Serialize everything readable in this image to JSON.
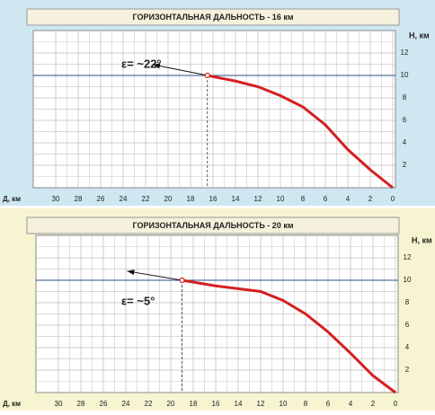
{
  "chart_data": [
    {
      "type": "line",
      "title": "ГОРИЗОНТАЛЬНАЯ ДАЛЬНОСТЬ - 16 км",
      "annotation": "ε= ~22°",
      "xlabel": "Д, км",
      "ylabel": "Н, км",
      "x": [
        16.5,
        14,
        12,
        10,
        8,
        6,
        4,
        2,
        0
      ],
      "series": [
        {
          "color": "#d42020",
          "values": [
            10,
            9.5,
            9,
            8.2,
            7.2,
            5.6,
            3.4,
            1.6,
            0
          ]
        }
      ],
      "xlim": [
        32,
        0
      ],
      "ylim": [
        0,
        14
      ],
      "xticks": [
        30,
        28,
        26,
        24,
        22,
        20,
        18,
        16,
        14,
        12,
        10,
        8,
        6,
        4,
        2,
        0
      ],
      "yticks": [
        2,
        4,
        6,
        8,
        10,
        12
      ],
      "grid": true,
      "background": "#cfe7f1"
    },
    {
      "type": "line",
      "title": "ГОРИЗОНТАЛЬНАЯ ДАЛЬНОСТЬ - 20 км",
      "annotation": "ε= ~5°",
      "xlabel": "Д, км",
      "ylabel": "Н, км",
      "x": [
        19,
        16,
        12,
        10,
        8,
        6,
        4,
        2,
        0
      ],
      "series": [
        {
          "color": "#d42020",
          "values": [
            10,
            9.5,
            9,
            8.2,
            7,
            5.4,
            3.5,
            1.5,
            0
          ]
        }
      ],
      "xlim": [
        32,
        0
      ],
      "ylim": [
        0,
        14
      ],
      "xticks": [
        30,
        28,
        26,
        24,
        22,
        20,
        18,
        16,
        14,
        12,
        10,
        8,
        6,
        4,
        2,
        0
      ],
      "yticks": [
        2,
        4,
        6,
        8,
        10,
        12
      ],
      "grid": true,
      "background": "#f7f4d2"
    }
  ]
}
